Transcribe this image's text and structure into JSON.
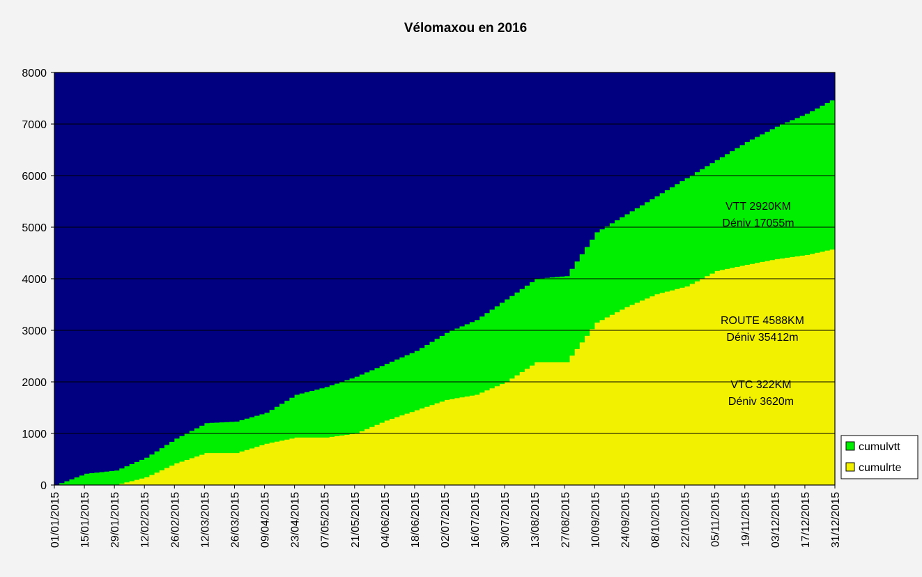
{
  "chart_data": {
    "type": "area",
    "title": "Vélomaxou en 2016",
    "xlabel": "",
    "ylabel": "",
    "ylim": [
      0,
      8000
    ],
    "yticks": [
      "0",
      "1000",
      "2000",
      "3000",
      "4000",
      "5000",
      "6000",
      "7000",
      "8000"
    ],
    "xticks": [
      "01/01/2015",
      "15/01/2015",
      "29/01/2015",
      "12/02/2015",
      "26/02/2015",
      "12/03/2015",
      "26/03/2015",
      "09/04/2015",
      "23/04/2015",
      "07/05/2015",
      "21/05/2015",
      "04/06/2015",
      "18/06/2015",
      "02/07/2015",
      "16/07/2015",
      "30/07/2015",
      "13/08/2015",
      "27/08/2015",
      "10/09/2015",
      "24/09/2015",
      "08/10/2015",
      "22/10/2015",
      "05/11/2015",
      "19/11/2015",
      "03/12/2015",
      "17/12/2015",
      "31/12/2015"
    ],
    "x_day_of_year": [
      0,
      14,
      28,
      42,
      56,
      70,
      84,
      98,
      112,
      126,
      140,
      154,
      168,
      182,
      196,
      210,
      224,
      238,
      252,
      266,
      280,
      294,
      308,
      322,
      336,
      350,
      364
    ],
    "series": [
      {
        "name": "cumulrte",
        "color": "#f2f200",
        "values": [
          0,
          0,
          0,
          150,
          420,
          620,
          620,
          800,
          920,
          920,
          1000,
          1250,
          1450,
          1650,
          1750,
          2000,
          2380,
          2380,
          3150,
          3450,
          3700,
          3850,
          4150,
          4270,
          4380,
          4460,
          4588
        ]
      },
      {
        "name": "cumulvtt",
        "color": "#00ee00",
        "values": [
          0,
          220,
          280,
          530,
          900,
          1200,
          1230,
          1400,
          1750,
          1900,
          2100,
          2350,
          2600,
          2950,
          3200,
          3600,
          4000,
          4050,
          4900,
          5250,
          5600,
          5950,
          6300,
          6650,
          6950,
          7200,
          7510
        ]
      }
    ],
    "background_color": "#000080",
    "annotations": [
      {
        "lines": [
          "VTT 2920KM",
          "Déniv 17055m"
        ]
      },
      {
        "lines": [
          "ROUTE 4588KM",
          "Déniv 35412m"
        ]
      },
      {
        "lines": [
          "VTC 322KM",
          "Déniv 3620m"
        ]
      }
    ],
    "legend": {
      "placement": "right",
      "entries": [
        "cumulvtt",
        "cumulrte"
      ]
    }
  }
}
